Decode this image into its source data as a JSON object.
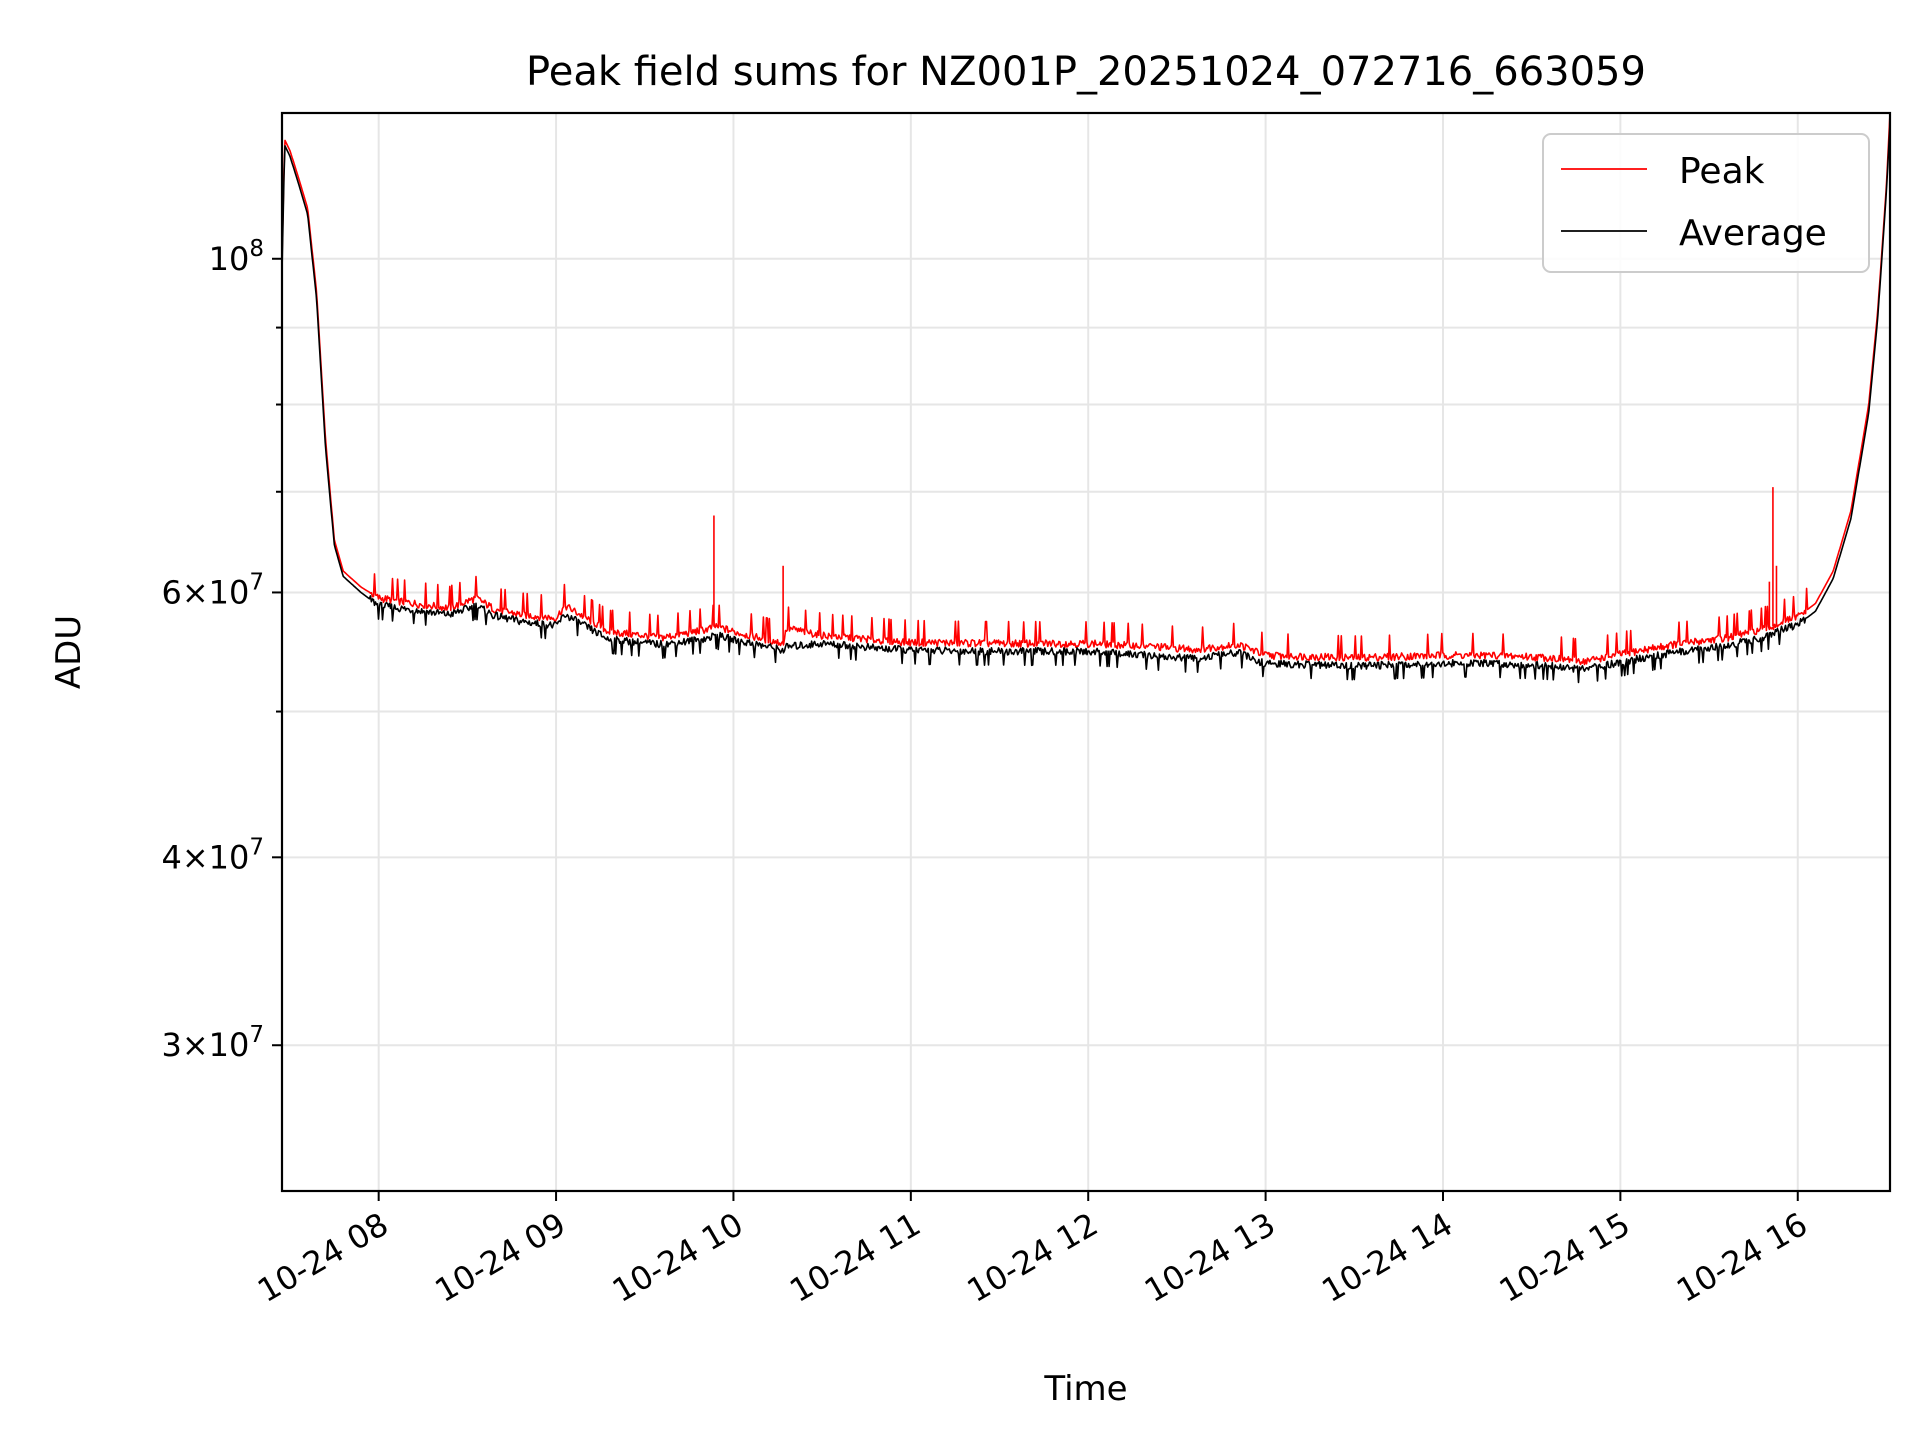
{
  "chart_data": {
    "type": "line",
    "title": "Peak field sums for NZ001P_20251024_072716_663059",
    "xlabel": "Time",
    "ylabel": "ADU",
    "yscale": "log",
    "xlim_hours": [
      7.455,
      16.52
    ],
    "ylim": [
      24000000,
      125000000
    ],
    "grid": true,
    "legend_position": "top-right",
    "x_ticks": [
      {
        "value": 8,
        "label": "10-24 08"
      },
      {
        "value": 9,
        "label": "10-24 09"
      },
      {
        "value": 10,
        "label": "10-24 10"
      },
      {
        "value": 11,
        "label": "10-24 11"
      },
      {
        "value": 12,
        "label": "10-24 12"
      },
      {
        "value": 13,
        "label": "10-24 13"
      },
      {
        "value": 14,
        "label": "10-24 14"
      },
      {
        "value": 15,
        "label": "10-24 15"
      },
      {
        "value": 16,
        "label": "10-24 16"
      }
    ],
    "y_ticks_major": [
      {
        "value": 100000000,
        "mantissa": "",
        "exponent": "8"
      },
      {
        "value": 60000000,
        "mantissa": "6",
        "exponent": "7"
      },
      {
        "value": 40000000,
        "mantissa": "4",
        "exponent": "7"
      },
      {
        "value": 30000000,
        "mantissa": "3",
        "exponent": "7"
      }
    ],
    "y_ticks_minor": [
      90000000,
      80000000,
      70000000,
      50000000
    ],
    "series": [
      {
        "name": "Peak",
        "color": "#ff0000",
        "x": [
          7.455,
          7.47,
          7.5,
          7.55,
          7.6,
          7.65,
          7.7,
          7.75,
          7.8,
          7.9,
          8.0,
          8.2,
          8.4,
          8.55,
          8.65,
          8.8,
          9.0,
          9.05,
          9.3,
          9.6,
          9.85,
          9.9,
          10.0,
          10.2,
          10.28,
          10.3,
          10.5,
          10.8,
          11.0,
          11.5,
          12.0,
          12.3,
          12.6,
          12.85,
          12.95,
          13.0,
          13.5,
          14.0,
          14.3,
          14.6,
          14.8,
          15.0,
          15.3,
          15.6,
          15.8,
          15.87,
          15.9,
          16.0,
          16.1,
          16.2,
          16.3,
          16.4,
          16.45,
          16.5,
          16.52
        ],
        "values": [
          100000000,
          120000000,
          118000000,
          113000000,
          108000000,
          95000000,
          76000000,
          65000000,
          62000000,
          60500000,
          59500000,
          59000000,
          58600000,
          59500000,
          58500000,
          58000000,
          57700000,
          58800000,
          56500000,
          56000000,
          56700000,
          57000000,
          56500000,
          55800000,
          55500000,
          56800000,
          56200000,
          55800000,
          55600000,
          55500000,
          55500000,
          55300000,
          55000000,
          55400000,
          54800000,
          54500000,
          54300000,
          54500000,
          54500000,
          54300000,
          54000000,
          54600000,
          55400000,
          56000000,
          56700000,
          57000000,
          57300000,
          57800000,
          59000000,
          62000000,
          68000000,
          80000000,
          92000000,
          112000000,
          125000000
        ]
      },
      {
        "name": "Average",
        "color": "#000000",
        "x": [
          7.455,
          7.47,
          7.5,
          7.55,
          7.6,
          7.65,
          7.7,
          7.75,
          7.8,
          7.9,
          8.0,
          8.2,
          8.4,
          8.55,
          8.65,
          8.8,
          9.0,
          9.05,
          9.3,
          9.6,
          9.85,
          9.9,
          10.0,
          10.2,
          10.28,
          10.3,
          10.5,
          10.8,
          11.0,
          11.5,
          12.0,
          12.3,
          12.6,
          12.85,
          12.95,
          13.0,
          13.5,
          14.0,
          14.3,
          14.6,
          14.8,
          15.0,
          15.3,
          15.6,
          15.8,
          15.87,
          15.9,
          16.0,
          16.1,
          16.2,
          16.3,
          16.4,
          16.45,
          16.5,
          16.52
        ],
        "values": [
          98000000,
          119000000,
          117000000,
          112000000,
          107000000,
          94000000,
          75000000,
          64500000,
          61500000,
          60000000,
          58800000,
          58400000,
          58000000,
          58800000,
          57900000,
          57400000,
          57000000,
          58000000,
          55800000,
          55400000,
          55900000,
          56200000,
          55800000,
          55200000,
          54900000,
          55200000,
          55500000,
          55100000,
          54900000,
          54800000,
          54800000,
          54500000,
          54200000,
          54700000,
          54000000,
          53800000,
          53600000,
          53800000,
          53800000,
          53600000,
          53300000,
          53900000,
          54700000,
          55300000,
          56000000,
          56300000,
          56600000,
          57100000,
          58300000,
          61300000,
          67200000,
          79000000,
          91000000,
          111000000,
          123000000
        ]
      }
    ],
    "spikes": [
      {
        "series": "Peak",
        "x": 9.89,
        "value": 67500000
      },
      {
        "series": "Peak",
        "x": 10.28,
        "value": 62500000
      },
      {
        "series": "Peak",
        "x": 15.86,
        "value": 70500000
      },
      {
        "series": "Peak",
        "x": 15.84,
        "value": 61000000
      },
      {
        "series": "Peak",
        "x": 15.88,
        "value": 62500000
      }
    ]
  }
}
